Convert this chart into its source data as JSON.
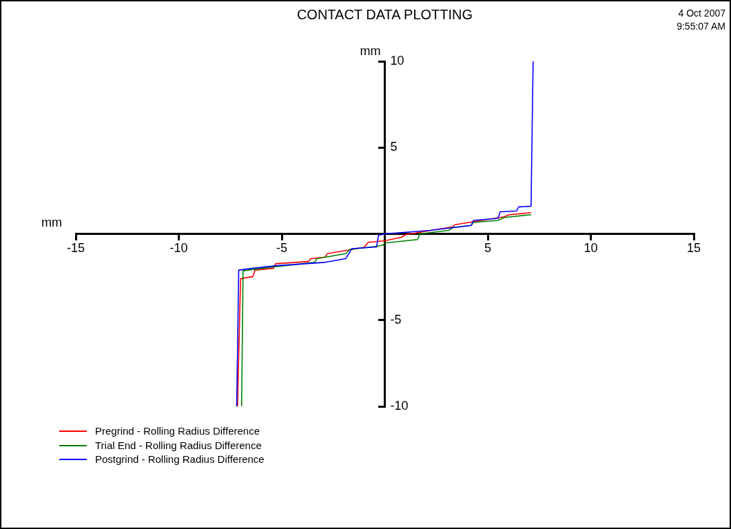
{
  "chart_data": {
    "type": "line",
    "title": "CONTACT DATA PLOTTING",
    "xlabel": "mm",
    "ylabel": "mm",
    "annotations": [
      "4 Oct 2007",
      "9:55:07 AM"
    ],
    "xlim": [
      -15,
      15
    ],
    "ylim": [
      -10,
      10
    ],
    "xticks": [
      -15,
      -10,
      -5,
      5,
      10,
      15
    ],
    "yticks": [
      -10,
      -5,
      5,
      10
    ],
    "grid": false,
    "legend": "bottom left",
    "marker": "none",
    "line_style": "solid",
    "series": [
      {
        "name": "Pregrind - Rolling Radius Difference",
        "color": "#ff0000",
        "x": [
          -7.15,
          -7.0,
          -6.4,
          -6.3,
          -5.4,
          -5.3,
          -3.7,
          -3.6,
          -2.9,
          -2.8,
          -1.0,
          -0.8,
          0,
          0.8,
          1.0,
          3.3,
          3.4,
          5.8,
          6.0,
          7.1
        ],
        "values": [
          -10,
          -2.6,
          -2.47,
          -2.1,
          -2.0,
          -1.73,
          -1.6,
          -1.44,
          -1.35,
          -1.15,
          -0.78,
          -0.49,
          -0.4,
          -0.2,
          -0.05,
          0.41,
          0.53,
          0.99,
          1.1,
          1.23
        ]
      },
      {
        "name": "Trial End - Rolling Radius Difference",
        "color": "#008000",
        "x": [
          -6.95,
          -6.88,
          -5.3,
          -3.4,
          -3.3,
          -1.9,
          -1.7,
          -0.5,
          -0.1,
          0,
          1.6,
          1.7,
          3.1,
          3.3,
          4.2,
          4.3,
          5.5,
          5.8,
          7.1
        ],
        "values": [
          -10,
          -2.14,
          -1.9,
          -1.65,
          -1.44,
          -1.15,
          -0.9,
          -0.74,
          -0.66,
          -0.53,
          -0.33,
          0,
          0.2,
          0.37,
          0.49,
          0.66,
          0.78,
          0.95,
          1.11
        ]
      },
      {
        "name": "Postgrind - Rolling Radius Difference",
        "color": "#0000ff",
        "x": [
          -7.19,
          -7.09,
          -6.3,
          -5.3,
          -2.9,
          -1.9,
          -1.6,
          -0.4,
          -0.3,
          0,
          2.2,
          4.2,
          4.3,
          5.5,
          5.6,
          6.4,
          6.5,
          7.1,
          7.2
        ],
        "values": [
          -10,
          -2.1,
          -1.98,
          -1.85,
          -1.65,
          -1.44,
          -0.86,
          -0.76,
          -0.08,
          0,
          0.2,
          0.49,
          0.78,
          0.9,
          1.28,
          1.33,
          1.56,
          1.6,
          10
        ]
      }
    ]
  }
}
